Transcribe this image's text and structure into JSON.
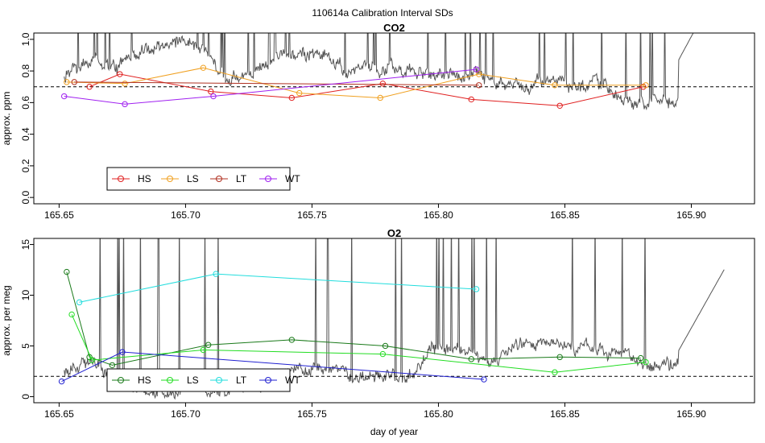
{
  "figure_title": "110614a   Calibration Interval SDs",
  "chart_data": [
    {
      "type": "line",
      "title": "CO2",
      "xlabel": "",
      "ylabel": "approx. ppm",
      "xlim": [
        165.64,
        165.925
      ],
      "ylim": [
        -0.04,
        1.04
      ],
      "xticks": [
        165.65,
        165.7,
        165.75,
        165.8,
        165.85,
        165.9
      ],
      "xtick_labels": [
        "165.65",
        "165.70",
        "165.75",
        "165.80",
        "165.85",
        "165.90"
      ],
      "yticks": [
        0.0,
        0.2,
        0.4,
        0.6,
        0.8,
        1.0
      ],
      "ytick_labels": [
        "0.0",
        "0.2",
        "0.4",
        "0.6",
        "0.8",
        "1.0"
      ],
      "reference_line": 0.7,
      "legend_position": "bottom-left",
      "legend": [
        "HS",
        "LS",
        "LT",
        "WT"
      ],
      "series": [
        {
          "name": "HS",
          "color": "#e02020",
          "x": [
            165.662,
            165.674,
            165.71,
            165.742,
            165.778,
            165.813,
            165.848,
            165.881
          ],
          "y": [
            0.7,
            0.78,
            0.67,
            0.63,
            0.72,
            0.62,
            0.58,
            0.7
          ]
        },
        {
          "name": "LS",
          "color": "#f0a020",
          "x": [
            165.653,
            165.676,
            165.707,
            165.745,
            165.777,
            165.816,
            165.846,
            165.882
          ],
          "y": [
            0.73,
            0.72,
            0.82,
            0.66,
            0.63,
            0.78,
            0.71,
            0.71
          ]
        },
        {
          "name": "LT",
          "color": "#b03020",
          "x": [
            165.656,
            165.816
          ],
          "y": [
            0.73,
            0.71
          ]
        },
        {
          "name": "WT",
          "color": "#a020f0",
          "x": [
            165.652,
            165.676,
            165.711,
            165.815
          ],
          "y": [
            0.64,
            0.59,
            0.64,
            0.81
          ]
        }
      ]
    },
    {
      "type": "line",
      "title": "O2",
      "xlabel": "day of year",
      "ylabel": "approx. per meg",
      "xlim": [
        165.64,
        165.925
      ],
      "ylim": [
        -0.6,
        15.6
      ],
      "xticks": [
        165.65,
        165.7,
        165.75,
        165.8,
        165.85,
        165.9
      ],
      "xtick_labels": [
        "165.65",
        "165.70",
        "165.75",
        "165.80",
        "165.85",
        "165.90"
      ],
      "yticks": [
        0,
        5,
        10,
        15
      ],
      "ytick_labels": [
        "0",
        "5",
        "10",
        "15"
      ],
      "reference_line": 2.0,
      "legend_position": "bottom-left",
      "legend": [
        "HS",
        "LS",
        "LT",
        "WT"
      ],
      "series": [
        {
          "name": "HS",
          "color": "#1a7a1a",
          "x": [
            165.653,
            165.662,
            165.671,
            165.709,
            165.742,
            165.779,
            165.813,
            165.848,
            165.88
          ],
          "y": [
            12.3,
            3.9,
            3.1,
            5.1,
            5.6,
            5.0,
            3.7,
            3.9,
            3.8
          ]
        },
        {
          "name": "LS",
          "color": "#22dd22",
          "x": [
            165.655,
            165.663,
            165.707,
            165.778,
            165.846,
            165.882
          ],
          "y": [
            8.1,
            3.6,
            4.6,
            4.2,
            2.4,
            3.4
          ]
        },
        {
          "name": "LT",
          "color": "#22dddd",
          "x": [
            165.658,
            165.712,
            165.815
          ],
          "y": [
            9.3,
            12.1,
            10.6
          ]
        },
        {
          "name": "WT",
          "color": "#2020d0",
          "x": [
            165.651,
            165.675,
            165.818
          ],
          "y": [
            1.5,
            4.4,
            1.7
          ]
        }
      ]
    }
  ]
}
